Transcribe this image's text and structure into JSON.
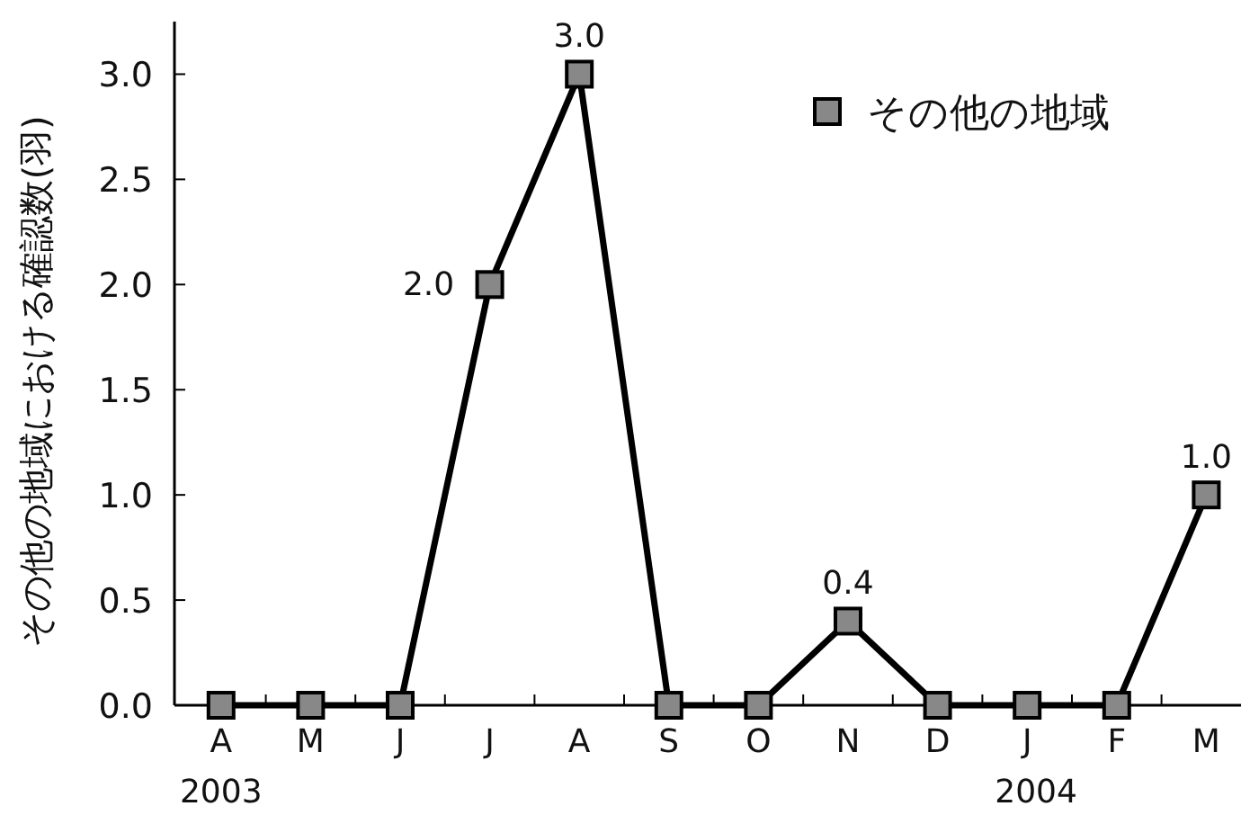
{
  "chart_data": {
    "type": "line",
    "ylabel": "その他の地域における確認数(羽)",
    "categories": [
      "A",
      "M",
      "J",
      "J",
      "A",
      "S",
      "O",
      "N",
      "D",
      "J",
      "F",
      "M"
    ],
    "series": [
      {
        "name": "その他の地域",
        "color": "#000000",
        "values": [
          0,
          0,
          0,
          2.0,
          3.0,
          0,
          0,
          0.4,
          0,
          0,
          0,
          1.0
        ],
        "value_labels": [
          null,
          null,
          null,
          "2.0",
          "3.0",
          null,
          null,
          "0.4",
          null,
          null,
          null,
          "1.0"
        ]
      }
    ],
    "ylim": [
      0,
      3.25
    ],
    "yticks": [
      {
        "value": 0,
        "label": "0.0"
      },
      {
        "value": 0.5,
        "label": "0.5"
      },
      {
        "value": 1,
        "label": "1.0"
      },
      {
        "value": 1.5,
        "label": "1.5"
      },
      {
        "value": 2,
        "label": "2.0"
      },
      {
        "value": 2.5,
        "label": "2.5"
      },
      {
        "value": 3,
        "label": "3.0"
      }
    ],
    "marker": "square",
    "legend": "top right",
    "grid": false,
    "annotations": [
      "2003",
      "2004"
    ]
  }
}
